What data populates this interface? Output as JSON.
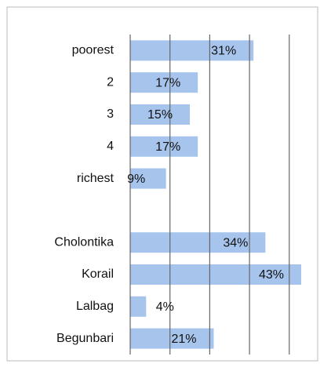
{
  "chart_data": {
    "type": "barh",
    "categories": [
      "poorest",
      "2",
      "3",
      "4",
      "richest",
      null,
      "Cholontika",
      "Korail",
      "Lalbag",
      "Begunbari"
    ],
    "values": [
      31,
      17,
      15,
      17,
      9,
      null,
      34,
      43,
      4,
      21
    ],
    "value_labels": [
      "31%",
      "17%",
      "15%",
      "17%",
      "9%",
      null,
      "34%",
      "43%",
      "4%",
      "21%"
    ],
    "color": "#a6c4ec",
    "xlim": [
      0,
      45
    ],
    "xticks": [
      0,
      10,
      20,
      30,
      40
    ],
    "grid": true
  }
}
